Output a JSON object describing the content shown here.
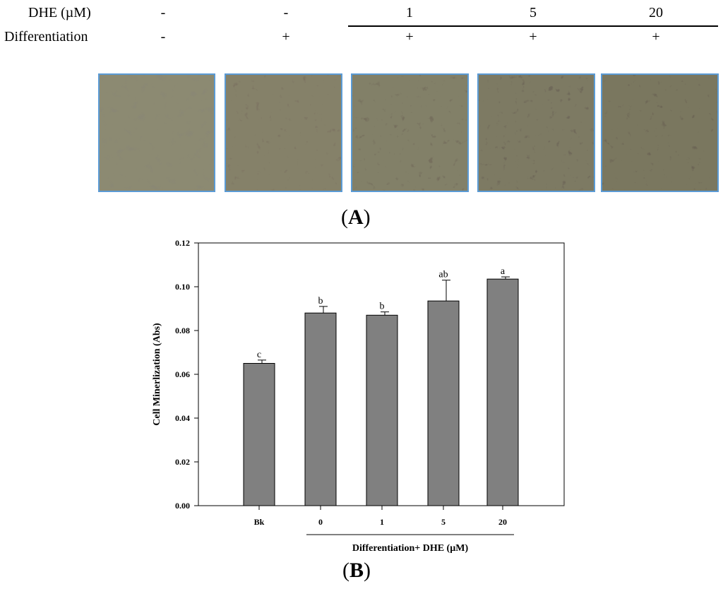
{
  "header": {
    "dhe_label": "DHE (µM)",
    "diff_label": "Differentiation",
    "dhe_values": [
      "-",
      "-",
      "1",
      "5",
      "20"
    ],
    "diff_values": [
      "-",
      "+",
      "+",
      "+",
      "+"
    ]
  },
  "panel_a": {
    "letter": "A"
  },
  "panel_b": {
    "letter": "B"
  },
  "chart_data": {
    "type": "bar",
    "categories": [
      "Bk",
      "0",
      "1",
      "5",
      "20"
    ],
    "values": [
      0.065,
      0.088,
      0.087,
      0.0935,
      0.1035
    ],
    "errors": [
      0.0015,
      0.003,
      0.0015,
      0.0095,
      0.001
    ],
    "significance": [
      "c",
      "b",
      "b",
      "ab",
      "a"
    ],
    "ylabel": "Cell Minerlization (Abs)",
    "xlabel": "Differentiation+ DHE (µM)",
    "ylim": [
      0,
      0.12
    ],
    "yticks": [
      "0.00",
      "0.02",
      "0.04",
      "0.06",
      "0.08",
      "0.10",
      "0.12"
    ],
    "bar_color": "#808080",
    "grid": false
  }
}
